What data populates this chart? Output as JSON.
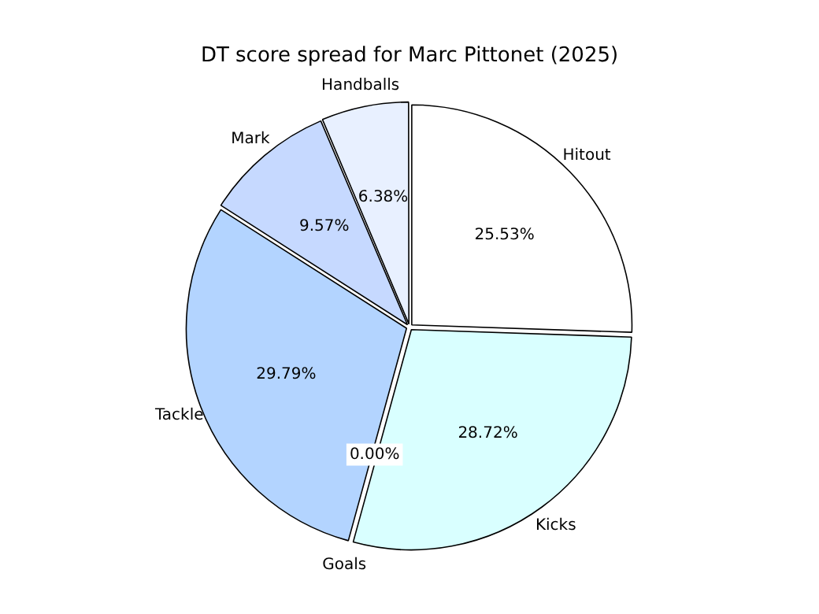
{
  "chart_data": {
    "type": "pie",
    "title": "DT score spread for Marc Pittonet (2025)",
    "categories": [
      "Hitout",
      "Kicks",
      "Goals",
      "Tackle",
      "Mark",
      "Handballs"
    ],
    "values": [
      25.53,
      28.72,
      0,
      29.79,
      9.57,
      6.38
    ],
    "colors": [
      "#ffffff",
      "#d9ffff",
      "#c0e0ff",
      "#b3d4ff",
      "#c6d9ff",
      "#e8f0ff"
    ],
    "value_labels": [
      "25.53%",
      "28.72%",
      "0.00%",
      "29.79%",
      "9.57%",
      "6.38%"
    ],
    "legend": false
  }
}
